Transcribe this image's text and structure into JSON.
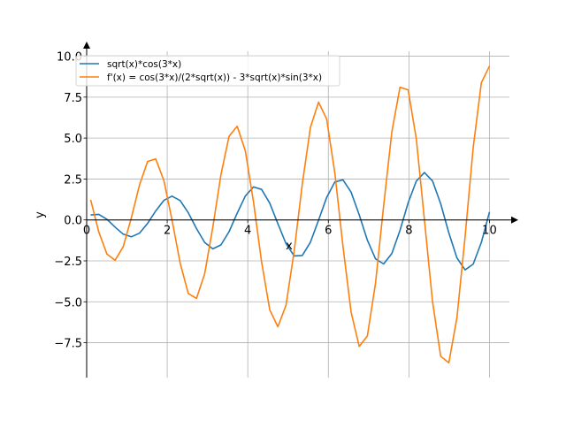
{
  "chart_data": {
    "type": "line",
    "title": "",
    "xlabel": "x",
    "ylabel": "y",
    "xlim": [
      -0.395,
      10.495
    ],
    "ylim": [
      -9.63,
      10.3
    ],
    "grid": true,
    "legend_position": "top-left",
    "x_ticks": [
      {
        "v": 0,
        "label": "0"
      },
      {
        "v": 2,
        "label": "2"
      },
      {
        "v": 4,
        "label": "4"
      },
      {
        "v": 6,
        "label": "6"
      },
      {
        "v": 8,
        "label": "8"
      },
      {
        "v": 10,
        "label": "10"
      }
    ],
    "y_ticks": [
      {
        "v": -7.5,
        "label": "−7.5"
      },
      {
        "v": -5,
        "label": "−5.0"
      },
      {
        "v": -2.5,
        "label": "−2.5"
      },
      {
        "v": 0,
        "label": "0.0"
      },
      {
        "v": 2.5,
        "label": "2.5"
      },
      {
        "v": 5,
        "label": "5.0"
      },
      {
        "v": 7.5,
        "label": "7.5"
      },
      {
        "v": 10,
        "label": "10.0"
      }
    ],
    "x": [
      0.1,
      0.302,
      0.504,
      0.706,
      0.908,
      1.11,
      1.312,
      1.514,
      1.716,
      1.918,
      2.12,
      2.322,
      2.524,
      2.727,
      2.929,
      3.131,
      3.333,
      3.535,
      3.737,
      3.939,
      4.141,
      4.343,
      4.545,
      4.747,
      4.949,
      5.151,
      5.353,
      5.555,
      5.757,
      5.959,
      6.161,
      6.363,
      6.565,
      6.767,
      6.969,
      7.171,
      7.373,
      7.576,
      7.778,
      7.98,
      8.182,
      8.384,
      8.586,
      8.788,
      8.99,
      9.192,
      9.394,
      9.596,
      9.798,
      10.0
    ],
    "series": [
      {
        "name": "sqrt(x)*cos(3*x)",
        "color": "#1f77b4",
        "values": [
          0.302,
          0.339,
          0.042,
          -0.437,
          -0.871,
          -1.034,
          -0.809,
          -0.209,
          0.55,
          1.196,
          1.452,
          1.181,
          0.44,
          -0.529,
          -1.373,
          -1.768,
          -1.531,
          -0.719,
          0.412,
          1.457,
          2.014,
          1.865,
          1.028,
          -0.225,
          -1.448,
          -2.197,
          -2.172,
          -1.36,
          -0.018,
          1.38,
          2.315,
          2.45,
          1.698,
          0.307,
          -1.236,
          -2.378,
          -2.692,
          -2.045,
          -0.637,
          1.04,
          2.365,
          2.895,
          2.378,
          0.989,
          -0.788,
          -2.324,
          -3.054,
          -2.697,
          -1.366,
          0.488
        ]
      },
      {
        "name": "f'(x) = cos(3*x)/(2*sqrt(x)) - 3*sqrt(x)*sin(3*x)",
        "color": "#ff7f0e",
        "values": [
          1.23,
          -0.736,
          -2.085,
          -2.462,
          -1.642,
          0.129,
          2.126,
          3.569,
          3.727,
          2.41,
          0.002,
          -2.635,
          -4.493,
          -4.79,
          -3.297,
          -0.458,
          2.755,
          5.11,
          5.722,
          4.226,
          1.119,
          -2.573,
          -5.49,
          -6.525,
          -5.213,
          -1.92,
          2.188,
          5.652,
          7.197,
          6.157,
          2.872,
          -1.608,
          -5.627,
          -7.727,
          -7.088,
          -3.859,
          0.866,
          5.391,
          8.104,
          7.944,
          4.971,
          0.014,
          -5.0,
          -8.327,
          -8.723,
          -5.967,
          -1.014,
          4.434,
          8.38,
          9.397
        ]
      }
    ]
  }
}
